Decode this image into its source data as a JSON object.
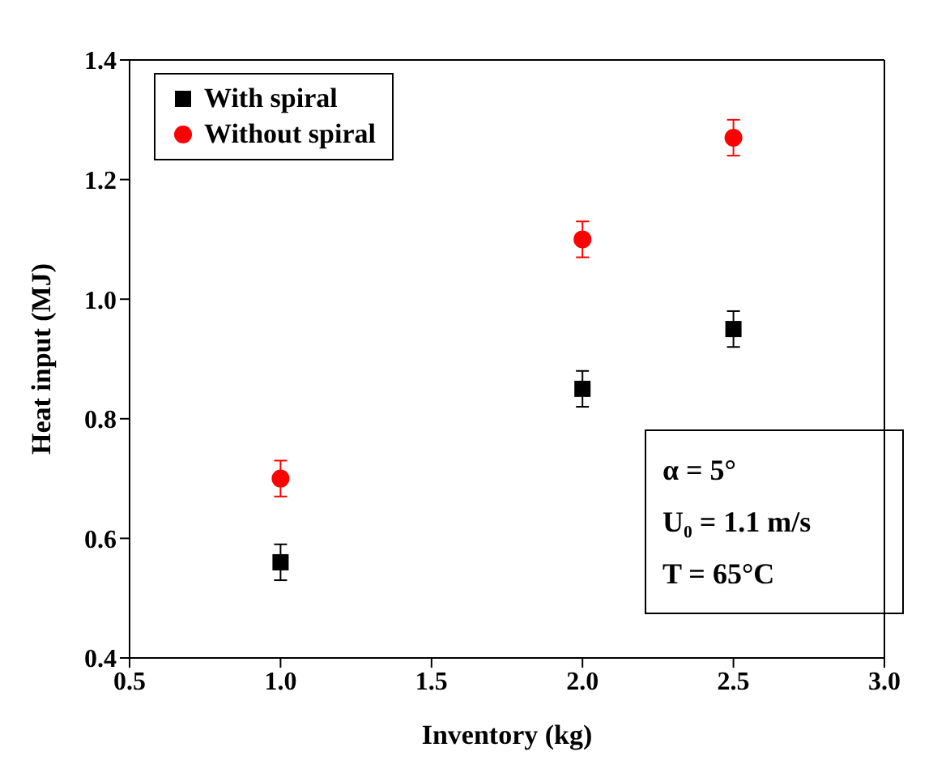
{
  "chart_data": {
    "type": "scatter",
    "xlabel": "Inventory (kg)",
    "ylabel": "Heat input (MJ)",
    "x": [
      1.0,
      2.0,
      2.5
    ],
    "series": [
      {
        "name": "With spiral",
        "color": "#000000",
        "marker": "square",
        "values": [
          0.56,
          0.85,
          0.95
        ],
        "errors": [
          0.03,
          0.03,
          0.03
        ]
      },
      {
        "name": "Without spiral",
        "color": "#ff0000",
        "marker": "circle",
        "values": [
          0.7,
          1.1,
          1.27
        ],
        "errors": [
          0.03,
          0.03,
          0.03
        ]
      }
    ],
    "xlim": [
      0.5,
      3.0
    ],
    "xticks": [
      {
        "value": 0.5,
        "label": "0.5"
      },
      {
        "value": 1.0,
        "label": "1.0"
      },
      {
        "value": 1.5,
        "label": "1.5"
      },
      {
        "value": 2.0,
        "label": "2.0"
      },
      {
        "value": 2.5,
        "label": "2.5"
      },
      {
        "value": 3.0,
        "label": "3.0"
      }
    ],
    "ylim": [
      0.4,
      1.4
    ],
    "yticks": [
      0.4,
      0.6,
      0.8,
      {
        "value": 1.0,
        "label": "1.0"
      },
      1.2,
      1.4
    ],
    "legend": "top left",
    "grid": false,
    "annotations": [
      "α = 5°",
      "U₀ = 1.1 m/s",
      "T = 65°C"
    ]
  }
}
